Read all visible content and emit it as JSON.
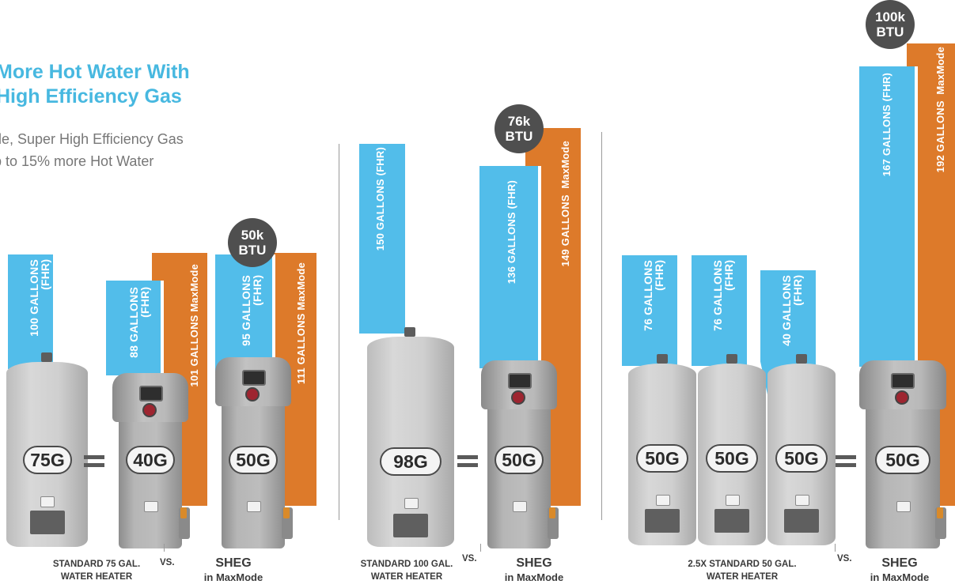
{
  "header": {
    "title": "More Hot Water With\nHigh Efficiency Gas",
    "subtitle": "de, Super High Efficiency Gas\np to 15% more Hot Water"
  },
  "colors": {
    "blue_bar": "#52bdea",
    "orange_bar": "#dd7a2a",
    "title": "#47b8e0",
    "badge": "#4f4f4f"
  },
  "panel1": {
    "bars": [
      {
        "label": "100 GALLONS\n(FHR)"
      },
      {
        "label": "88 GALLONS\n(FHR)"
      },
      {
        "label": "101 GALLONS MaxMode"
      },
      {
        "label": "95 GALLONS\n(FHR)"
      },
      {
        "label": "111 GALLONS MaxMode"
      }
    ],
    "tanks": [
      "75G",
      "40G",
      "50G"
    ],
    "btu": "50k\nBTU",
    "caption": "STANDARD 75 GAL.\nWATER HEATER",
    "vs": "VS.",
    "sheg": "SHEG",
    "sheg_sub": "in MaxMode"
  },
  "panel2": {
    "bars": [
      {
        "label": "150 GALLONS (FHR)"
      },
      {
        "label": "136 GALLONS (FHR)"
      },
      {
        "label": "149 GALLONS  MaxMode"
      }
    ],
    "tanks": [
      "98G",
      "50G"
    ],
    "btu": "76k\nBTU",
    "caption": "STANDARD 100 GAL.\nWATER HEATER",
    "vs": "VS.",
    "sheg": "SHEG",
    "sheg_sub": "in MaxMode"
  },
  "panel3": {
    "bars": [
      {
        "label": "76 GALLONS\n(FHR)"
      },
      {
        "label": "76 GALLONS\n(FHR)"
      },
      {
        "label": "40 GALLONS\n(FHR)"
      },
      {
        "label": "167 GALLONS (FHR)"
      },
      {
        "label": "192 GALLONS  MaxMode"
      }
    ],
    "tanks": [
      "50G",
      "50G",
      "50G",
      "50G"
    ],
    "btu": "100k\nBTU",
    "caption": "2.5X STANDARD 50 GAL.\nWATER HEATER",
    "vs": "VS.",
    "sheg": "SHEG",
    "sheg_sub": "in MaxMode"
  }
}
